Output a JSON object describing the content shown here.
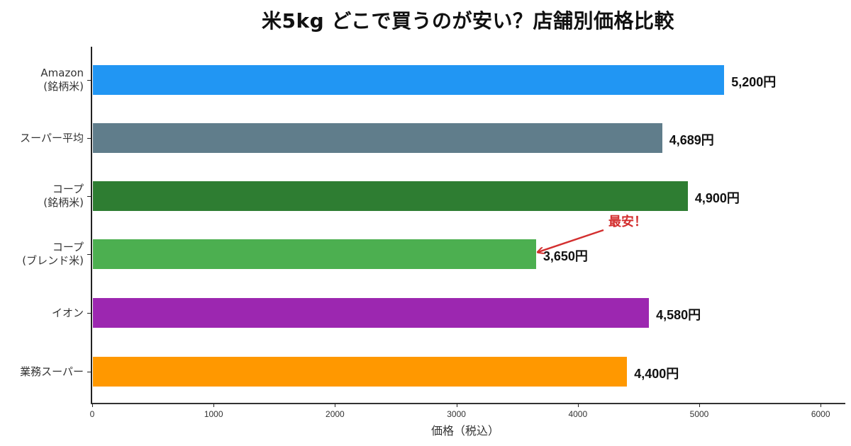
{
  "chart_data": {
    "type": "bar",
    "orientation": "horizontal",
    "title": "米5kg どこで買うのが安い？店舗別価格比較",
    "xlabel": "価格（税込）",
    "ylabel": "",
    "xlim": [
      0,
      6200
    ],
    "xticks": [
      0,
      1000,
      2000,
      3000,
      4000,
      5000,
      6000
    ],
    "grid": false,
    "legend": null,
    "categories": [
      "Amazon\n(銘柄米)",
      "スーパー平均",
      "コープ\n(銘柄米)",
      "コープ\n(ブレンド米)",
      "イオン",
      "業務スーパー"
    ],
    "values": [
      5200,
      4689,
      4900,
      3650,
      4580,
      4400
    ],
    "value_labels": [
      "5,200円",
      "4,689円",
      "4,900円",
      "3,650円",
      "4,580円",
      "4,400円"
    ],
    "colors": [
      "#2196f3",
      "#607d8b",
      "#2e7d32",
      "#4caf50",
      "#9c27b0",
      "#ff9800"
    ],
    "annotations": [
      {
        "text": "最安！",
        "target_category": "コープ\n(ブレンド米)",
        "target_value": 3650,
        "color": "#d32f2f",
        "arrow": true
      }
    ]
  },
  "xtick_labels": [
    "0",
    "1000",
    "2000",
    "3000",
    "4000",
    "5000",
    "6000"
  ]
}
